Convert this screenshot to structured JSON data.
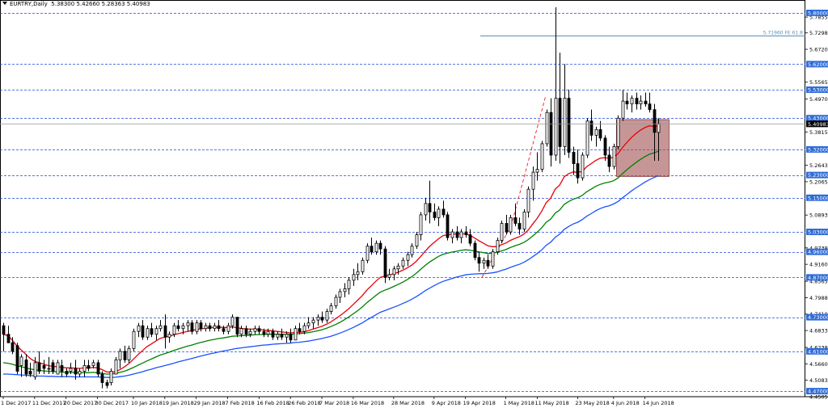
{
  "header": {
    "symbol_label": "EURTRY,Daily",
    "ohlc_text": "5.38300 5.42660 5.28363 5.40983"
  },
  "colors": {
    "bull": "#ffffff",
    "bear": "#000000",
    "ma_fast": "#e8000b",
    "ma_mid": "#008000",
    "ma_slow": "#1a52ff",
    "level_line": "#1f4bd6",
    "level_badge": "#2e6bd6",
    "current_badge": "#000000",
    "fibo": "#5b8fb5",
    "box_fill": "#a05050"
  },
  "chart_data": {
    "type": "candlestick",
    "symbol": "EURTRY",
    "timeframe": "Daily",
    "ylim": [
      4.4505,
      5.8455
    ],
    "x_tick_labels": [
      "1 Dec 2017",
      "11 Dec 2017",
      "20 Dec 2017",
      "30 Dec 2017",
      "10 Jan 2018",
      "19 Jan 2018",
      "29 Jan 2018",
      "7 Feb 2018",
      "16 Feb 2018",
      "26 Feb 2018",
      "7 Mar 2018",
      "16 Mar 2018",
      "28 Mar 2018",
      "9 Apr 2018",
      "19 Apr 2018",
      "1 May 2018",
      "11 May 2018",
      "23 May 2018",
      "4 Jun 2018",
      "14 Jun 2018"
    ],
    "x_tick_index": [
      0,
      7,
      14,
      21,
      29,
      36,
      43,
      50,
      57,
      64,
      71,
      78,
      87,
      96,
      103,
      112,
      119,
      128,
      136,
      143
    ],
    "y_tick_labels": [
      "5.78550",
      "5.72980",
      "5.67205",
      "5.55655",
      "5.49705",
      "5.38155",
      "5.26430",
      "5.20655",
      "5.08930",
      "4.97380",
      "4.91605",
      "4.85655",
      "4.79880",
      "4.74105",
      "4.68330",
      "4.62380",
      "4.56605",
      "4.50830",
      "4.45055"
    ],
    "level_labels": [
      "5.80000",
      "5.62000",
      "5.53000",
      "5.43000",
      "5.32000",
      "5.23000",
      "5.15000",
      "5.03000",
      "4.96000",
      "4.87000",
      "4.73000",
      "4.61000",
      "4.47000"
    ],
    "current_price": "5.40983",
    "fibo_label": "5.71960 FE 61.8",
    "fibo_value": 5.7196,
    "box_top": 5.425,
    "box_bottom": 5.225,
    "box_start_index": 137,
    "box_end_index": 148,
    "candles": [
      [
        4.7,
        4.71,
        4.61,
        4.67
      ],
      [
        4.67,
        4.7,
        4.64,
        4.64
      ],
      [
        4.64,
        4.66,
        4.6,
        4.61
      ],
      [
        4.63,
        4.64,
        4.53,
        4.54
      ],
      [
        4.56,
        4.6,
        4.52,
        4.59
      ],
      [
        4.58,
        4.6,
        4.52,
        4.53
      ],
      [
        4.54,
        4.57,
        4.52,
        4.53
      ],
      [
        4.52,
        4.59,
        4.51,
        4.57
      ],
      [
        4.57,
        4.61,
        4.53,
        4.54
      ],
      [
        4.56,
        4.58,
        4.53,
        4.55
      ],
      [
        4.55,
        4.59,
        4.53,
        4.55
      ],
      [
        4.57,
        4.58,
        4.53,
        4.54
      ],
      [
        4.53,
        4.58,
        4.53,
        4.57
      ],
      [
        4.56,
        4.58,
        4.52,
        4.54
      ],
      [
        4.54,
        4.55,
        4.52,
        4.53
      ],
      [
        4.54,
        4.57,
        4.53,
        4.55
      ],
      [
        4.55,
        4.58,
        4.51,
        4.53
      ],
      [
        4.53,
        4.55,
        4.52,
        4.54
      ],
      [
        4.54,
        4.58,
        4.52,
        4.56
      ],
      [
        4.56,
        4.58,
        4.54,
        4.55
      ],
      [
        4.56,
        4.58,
        4.55,
        4.57
      ],
      [
        4.57,
        4.58,
        4.52,
        4.53
      ],
      [
        4.53,
        4.54,
        4.48,
        4.5
      ],
      [
        4.5,
        4.51,
        4.48,
        4.49
      ],
      [
        4.5,
        4.55,
        4.49,
        4.54
      ],
      [
        4.53,
        4.59,
        4.53,
        4.58
      ],
      [
        4.58,
        4.62,
        4.55,
        4.61
      ],
      [
        4.61,
        4.63,
        4.57,
        4.58
      ],
      [
        4.58,
        4.63,
        4.57,
        4.62
      ],
      [
        4.62,
        4.69,
        4.61,
        4.68
      ],
      [
        4.68,
        4.71,
        4.66,
        4.7
      ],
      [
        4.7,
        4.72,
        4.65,
        4.66
      ],
      [
        4.66,
        4.7,
        4.65,
        4.69
      ],
      [
        4.69,
        4.71,
        4.66,
        4.67
      ],
      [
        4.67,
        4.7,
        4.65,
        4.69
      ],
      [
        4.69,
        4.72,
        4.68,
        4.7
      ],
      [
        4.7,
        4.74,
        4.62,
        4.66
      ],
      [
        4.66,
        4.68,
        4.64,
        4.67
      ],
      [
        4.67,
        4.71,
        4.66,
        4.7
      ],
      [
        4.7,
        4.72,
        4.68,
        4.69
      ],
      [
        4.69,
        4.71,
        4.67,
        4.7
      ],
      [
        4.7,
        4.72,
        4.68,
        4.71
      ],
      [
        4.71,
        4.72,
        4.67,
        4.68
      ],
      [
        4.68,
        4.72,
        4.67,
        4.71
      ],
      [
        4.71,
        4.72,
        4.68,
        4.69
      ],
      [
        4.69,
        4.71,
        4.68,
        4.7
      ],
      [
        4.7,
        4.71,
        4.68,
        4.69
      ],
      [
        4.69,
        4.71,
        4.68,
        4.7
      ],
      [
        4.7,
        4.72,
        4.68,
        4.69
      ],
      [
        4.69,
        4.7,
        4.67,
        4.68
      ],
      [
        4.68,
        4.71,
        4.67,
        4.7
      ],
      [
        4.7,
        4.74,
        4.69,
        4.73
      ],
      [
        4.73,
        4.73,
        4.66,
        4.67
      ],
      [
        4.67,
        4.7,
        4.66,
        4.69
      ],
      [
        4.69,
        4.7,
        4.66,
        4.67
      ],
      [
        4.67,
        4.69,
        4.66,
        4.68
      ],
      [
        4.68,
        4.7,
        4.67,
        4.69
      ],
      [
        4.69,
        4.7,
        4.67,
        4.68
      ],
      [
        4.68,
        4.69,
        4.66,
        4.67
      ],
      [
        4.67,
        4.69,
        4.66,
        4.68
      ],
      [
        4.68,
        4.69,
        4.65,
        4.66
      ],
      [
        4.66,
        4.68,
        4.65,
        4.67
      ],
      [
        4.67,
        4.69,
        4.65,
        4.66
      ],
      [
        4.66,
        4.68,
        4.64,
        4.67
      ],
      [
        4.67,
        4.69,
        4.64,
        4.65
      ],
      [
        4.65,
        4.7,
        4.65,
        4.69
      ],
      [
        4.69,
        4.71,
        4.67,
        4.68
      ],
      [
        4.68,
        4.71,
        4.67,
        4.7
      ],
      [
        4.7,
        4.73,
        4.69,
        4.71
      ],
      [
        4.71,
        4.73,
        4.69,
        4.72
      ],
      [
        4.72,
        4.74,
        4.7,
        4.73
      ],
      [
        4.73,
        4.75,
        4.71,
        4.72
      ],
      [
        4.72,
        4.76,
        4.71,
        4.75
      ],
      [
        4.75,
        4.78,
        4.74,
        4.77
      ],
      [
        4.77,
        4.81,
        4.76,
        4.8
      ],
      [
        4.8,
        4.83,
        4.78,
        4.82
      ],
      [
        4.82,
        4.85,
        4.8,
        4.83
      ],
      [
        4.83,
        4.87,
        4.81,
        4.86
      ],
      [
        4.86,
        4.9,
        4.84,
        4.88
      ],
      [
        4.88,
        4.92,
        4.86,
        4.89
      ],
      [
        4.89,
        4.94,
        4.88,
        4.93
      ],
      [
        4.93,
        4.99,
        4.92,
        4.98
      ],
      [
        4.98,
        5.01,
        4.95,
        4.96
      ],
      [
        4.96,
        5.0,
        4.95,
        4.99
      ],
      [
        4.99,
        5.0,
        4.95,
        4.97
      ],
      [
        4.97,
        4.98,
        4.85,
        4.87
      ],
      [
        4.87,
        4.9,
        4.86,
        4.88
      ],
      [
        4.88,
        4.91,
        4.86,
        4.9
      ],
      [
        4.9,
        4.92,
        4.88,
        4.91
      ],
      [
        4.91,
        4.94,
        4.9,
        4.93
      ],
      [
        4.93,
        4.96,
        4.91,
        4.95
      ],
      [
        4.95,
        4.99,
        4.94,
        4.98
      ],
      [
        4.98,
        5.03,
        4.97,
        5.02
      ],
      [
        5.02,
        5.1,
        5.0,
        5.09
      ],
      [
        5.09,
        5.15,
        5.07,
        5.13
      ],
      [
        5.13,
        5.21,
        5.06,
        5.1
      ],
      [
        5.1,
        5.13,
        5.07,
        5.08
      ],
      [
        5.08,
        5.12,
        5.05,
        5.11
      ],
      [
        5.11,
        5.14,
        5.08,
        5.09
      ],
      [
        5.09,
        5.1,
        5.0,
        5.01
      ],
      [
        5.01,
        5.04,
        4.99,
        5.03
      ],
      [
        5.03,
        5.05,
        5.0,
        5.01
      ],
      [
        5.01,
        5.04,
        4.99,
        5.03
      ],
      [
        5.03,
        5.05,
        5.01,
        5.02
      ],
      [
        5.02,
        5.04,
        4.98,
        4.99
      ],
      [
        4.99,
        5.0,
        4.93,
        4.94
      ],
      [
        4.94,
        4.96,
        4.89,
        4.92
      ],
      [
        4.92,
        4.94,
        4.9,
        4.93
      ],
      [
        4.93,
        4.95,
        4.9,
        4.91
      ],
      [
        4.91,
        4.97,
        4.9,
        4.96
      ],
      [
        4.96,
        5.01,
        4.95,
        5.0
      ],
      [
        5.0,
        5.07,
        4.99,
        5.06
      ],
      [
        5.06,
        5.09,
        5.02,
        5.03
      ],
      [
        5.03,
        5.09,
        5.02,
        5.08
      ],
      [
        5.08,
        5.13,
        5.05,
        5.06
      ],
      [
        5.06,
        5.08,
        5.02,
        5.04
      ],
      [
        5.04,
        5.11,
        5.03,
        5.1
      ],
      [
        5.1,
        5.19,
        5.08,
        5.18
      ],
      [
        5.18,
        5.26,
        5.14,
        5.24
      ],
      [
        5.24,
        5.31,
        5.21,
        5.25
      ],
      [
        5.25,
        5.35,
        5.24,
        5.34
      ],
      [
        5.34,
        5.46,
        5.33,
        5.45
      ],
      [
        5.45,
        5.5,
        5.26,
        5.3
      ],
      [
        5.3,
        5.82,
        5.28,
        5.5
      ],
      [
        5.5,
        5.66,
        5.27,
        5.33
      ],
      [
        5.33,
        5.62,
        5.3,
        5.5
      ],
      [
        5.5,
        5.53,
        5.29,
        5.31
      ],
      [
        5.31,
        5.33,
        5.23,
        5.27
      ],
      [
        5.27,
        5.32,
        5.2,
        5.22
      ],
      [
        5.22,
        5.31,
        5.21,
        5.3
      ],
      [
        5.3,
        5.43,
        5.29,
        5.42
      ],
      [
        5.42,
        5.46,
        5.35,
        5.37
      ],
      [
        5.37,
        5.4,
        5.33,
        5.39
      ],
      [
        5.39,
        5.42,
        5.35,
        5.36
      ],
      [
        5.36,
        5.37,
        5.28,
        5.3
      ],
      [
        5.3,
        5.33,
        5.24,
        5.26
      ],
      [
        5.26,
        5.34,
        5.25,
        5.33
      ],
      [
        5.33,
        5.44,
        5.32,
        5.43
      ],
      [
        5.43,
        5.53,
        5.42,
        5.49
      ],
      [
        5.49,
        5.52,
        5.46,
        5.48
      ],
      [
        5.48,
        5.51,
        5.45,
        5.5
      ],
      [
        5.5,
        5.52,
        5.46,
        5.48
      ],
      [
        5.48,
        5.51,
        5.46,
        5.49
      ],
      [
        5.49,
        5.52,
        5.47,
        5.48
      ],
      [
        5.48,
        5.52,
        5.45,
        5.46
      ],
      [
        5.46,
        5.48,
        5.28,
        5.38
      ],
      [
        5.38,
        5.43,
        5.28,
        5.41
      ]
    ],
    "ma_fast": [
      4.67,
      4.665,
      4.65,
      4.63,
      4.615,
      4.6,
      4.585,
      4.575,
      4.57,
      4.565,
      4.56,
      4.557,
      4.556,
      4.554,
      4.552,
      4.552,
      4.551,
      4.55,
      4.552,
      4.552,
      4.553,
      4.552,
      4.546,
      4.538,
      4.536,
      4.538,
      4.546,
      4.555,
      4.567,
      4.582,
      4.598,
      4.612,
      4.626,
      4.636,
      4.646,
      4.656,
      4.66,
      4.663,
      4.668,
      4.672,
      4.676,
      4.68,
      4.683,
      4.687,
      4.689,
      4.691,
      4.693,
      4.694,
      4.695,
      4.694,
      4.694,
      4.696,
      4.693,
      4.691,
      4.689,
      4.688,
      4.688,
      4.687,
      4.685,
      4.684,
      4.682,
      4.68,
      4.678,
      4.677,
      4.675,
      4.676,
      4.677,
      4.679,
      4.683,
      4.688,
      4.693,
      4.698,
      4.705,
      4.713,
      4.724,
      4.735,
      4.747,
      4.76,
      4.775,
      4.79,
      4.806,
      4.825,
      4.84,
      4.856,
      4.87,
      4.874,
      4.878,
      4.883,
      4.888,
      4.895,
      4.903,
      4.913,
      4.926,
      4.943,
      4.962,
      4.979,
      4.993,
      5.006,
      5.017,
      5.02,
      5.022,
      5.023,
      5.023,
      5.023,
      5.018,
      5.009,
      4.999,
      4.99,
      4.981,
      4.978,
      4.978,
      4.985,
      4.991,
      5.0,
      5.007,
      5.013,
      5.022,
      5.037,
      5.058,
      5.078,
      5.103,
      5.133,
      5.149,
      5.18,
      5.195,
      5.224,
      5.235,
      5.241,
      5.24,
      5.242,
      5.259,
      5.27,
      5.281,
      5.289,
      5.291,
      5.289,
      5.292,
      5.305,
      5.327,
      5.345,
      5.362,
      5.376,
      5.388,
      5.397,
      5.403,
      5.401,
      5.402
    ],
    "ma_mid": [
      4.57,
      4.568,
      4.565,
      4.56,
      4.556,
      4.552,
      4.548,
      4.545,
      4.543,
      4.541,
      4.54,
      4.539,
      4.538,
      4.537,
      4.536,
      4.536,
      4.535,
      4.535,
      4.535,
      4.535,
      4.536,
      4.535,
      4.533,
      4.53,
      4.53,
      4.532,
      4.536,
      4.54,
      4.546,
      4.553,
      4.561,
      4.568,
      4.576,
      4.583,
      4.59,
      4.597,
      4.602,
      4.607,
      4.613,
      4.618,
      4.623,
      4.628,
      4.632,
      4.637,
      4.641,
      4.645,
      4.649,
      4.652,
      4.655,
      4.657,
      4.66,
      4.663,
      4.664,
      4.665,
      4.666,
      4.667,
      4.668,
      4.669,
      4.669,
      4.67,
      4.67,
      4.67,
      4.67,
      4.67,
      4.67,
      4.671,
      4.672,
      4.674,
      4.676,
      4.679,
      4.682,
      4.686,
      4.691,
      4.697,
      4.704,
      4.712,
      4.721,
      4.731,
      4.742,
      4.753,
      4.766,
      4.781,
      4.793,
      4.806,
      4.818,
      4.825,
      4.831,
      4.838,
      4.845,
      4.853,
      4.862,
      4.872,
      4.884,
      4.898,
      4.912,
      4.924,
      4.934,
      4.944,
      4.951,
      4.955,
      4.959,
      4.962,
      4.965,
      4.967,
      4.966,
      4.963,
      4.96,
      4.957,
      4.954,
      4.955,
      4.958,
      4.963,
      4.968,
      4.975,
      4.981,
      4.986,
      4.993,
      5.003,
      5.016,
      5.029,
      5.045,
      5.064,
      5.075,
      5.096,
      5.107,
      5.127,
      5.137,
      5.145,
      5.15,
      5.158,
      5.171,
      5.18,
      5.19,
      5.197,
      5.202,
      5.205,
      5.21,
      5.22,
      5.235,
      5.249,
      5.262,
      5.274,
      5.285,
      5.295,
      5.303,
      5.308,
      5.314
    ],
    "ma_slow": [
      4.53,
      4.53,
      4.529,
      4.528,
      4.527,
      4.526,
      4.525,
      4.524,
      4.523,
      4.523,
      4.522,
      4.522,
      4.521,
      4.521,
      4.521,
      4.521,
      4.52,
      4.52,
      4.52,
      4.52,
      4.52,
      4.52,
      4.519,
      4.518,
      4.518,
      4.519,
      4.521,
      4.523,
      4.526,
      4.53,
      4.534,
      4.538,
      4.543,
      4.547,
      4.552,
      4.556,
      4.56,
      4.564,
      4.568,
      4.573,
      4.577,
      4.581,
      4.585,
      4.589,
      4.593,
      4.597,
      4.601,
      4.604,
      4.608,
      4.611,
      4.614,
      4.617,
      4.62,
      4.622,
      4.624,
      4.626,
      4.628,
      4.63,
      4.632,
      4.633,
      4.635,
      4.636,
      4.637,
      4.638,
      4.639,
      4.641,
      4.642,
      4.644,
      4.646,
      4.649,
      4.652,
      4.655,
      4.659,
      4.663,
      4.668,
      4.674,
      4.68,
      4.687,
      4.694,
      4.702,
      4.71,
      4.72,
      4.729,
      4.738,
      4.747,
      4.753,
      4.759,
      4.765,
      4.771,
      4.778,
      4.785,
      4.793,
      4.802,
      4.812,
      4.823,
      4.832,
      4.841,
      4.849,
      4.856,
      4.861,
      4.866,
      4.871,
      4.875,
      4.879,
      4.881,
      4.882,
      4.883,
      4.883,
      4.884,
      4.886,
      4.889,
      4.894,
      4.899,
      4.905,
      4.911,
      4.916,
      4.923,
      4.932,
      4.943,
      4.954,
      4.967,
      4.983,
      4.994,
      5.011,
      5.022,
      5.039,
      5.049,
      5.058,
      5.064,
      5.073,
      5.085,
      5.094,
      5.104,
      5.112,
      5.118,
      5.122,
      5.128,
      5.137,
      5.15,
      5.162,
      5.174,
      5.185,
      5.195,
      5.205,
      5.214,
      5.221,
      5.228
    ]
  }
}
